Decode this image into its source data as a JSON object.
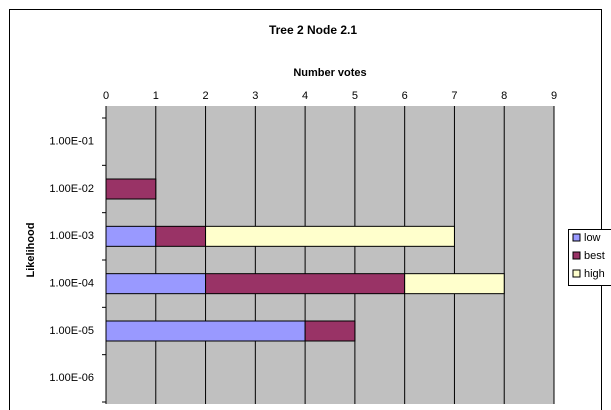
{
  "chart_data": {
    "type": "bar",
    "orientation": "horizontal",
    "stacked": true,
    "title": "Tree 2 Node 2.1",
    "x_label": "Number votes",
    "y_label": "Likelihood",
    "categories": [
      "1.00E-01",
      "1.00E-02",
      "1.00E-03",
      "1.00E-04",
      "1.00E-05",
      "1.00E-06"
    ],
    "series": [
      {
        "name": "low",
        "color": "#9999ff",
        "values": [
          0,
          0,
          1,
          2,
          4,
          0
        ]
      },
      {
        "name": "best",
        "color": "#993366",
        "values": [
          0,
          1,
          1,
          4,
          1,
          0
        ]
      },
      {
        "name": "high",
        "color": "#ffffcc",
        "values": [
          0,
          0,
          5,
          2,
          0,
          0
        ]
      }
    ],
    "xlim": [
      0,
      9
    ],
    "xticks": [
      0,
      1,
      2,
      3,
      4,
      5,
      6,
      7,
      8,
      9
    ],
    "grid": true,
    "legend": "right"
  }
}
